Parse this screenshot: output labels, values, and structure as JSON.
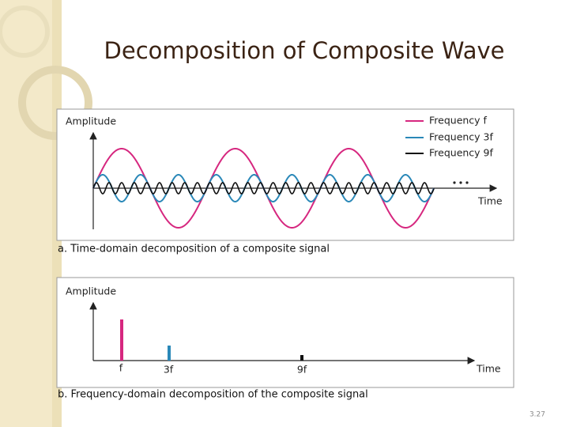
{
  "title": "Decomposition of Composite Wave",
  "figure_a": {
    "y_axis_label": "Amplitude",
    "x_axis_label": "Time",
    "legend": [
      "Frequency f",
      "Frequency 3f",
      "Frequency 9f"
    ],
    "caption": "a. Time-domain decomposition of a composite signal"
  },
  "figure_b": {
    "y_axis_label": "Amplitude",
    "x_axis_label": "Time",
    "bar_labels": [
      "f",
      "3f",
      "9f"
    ],
    "caption": "b. Frequency-domain decomposition of the composite signal"
  },
  "slide_number": "3.27"
}
